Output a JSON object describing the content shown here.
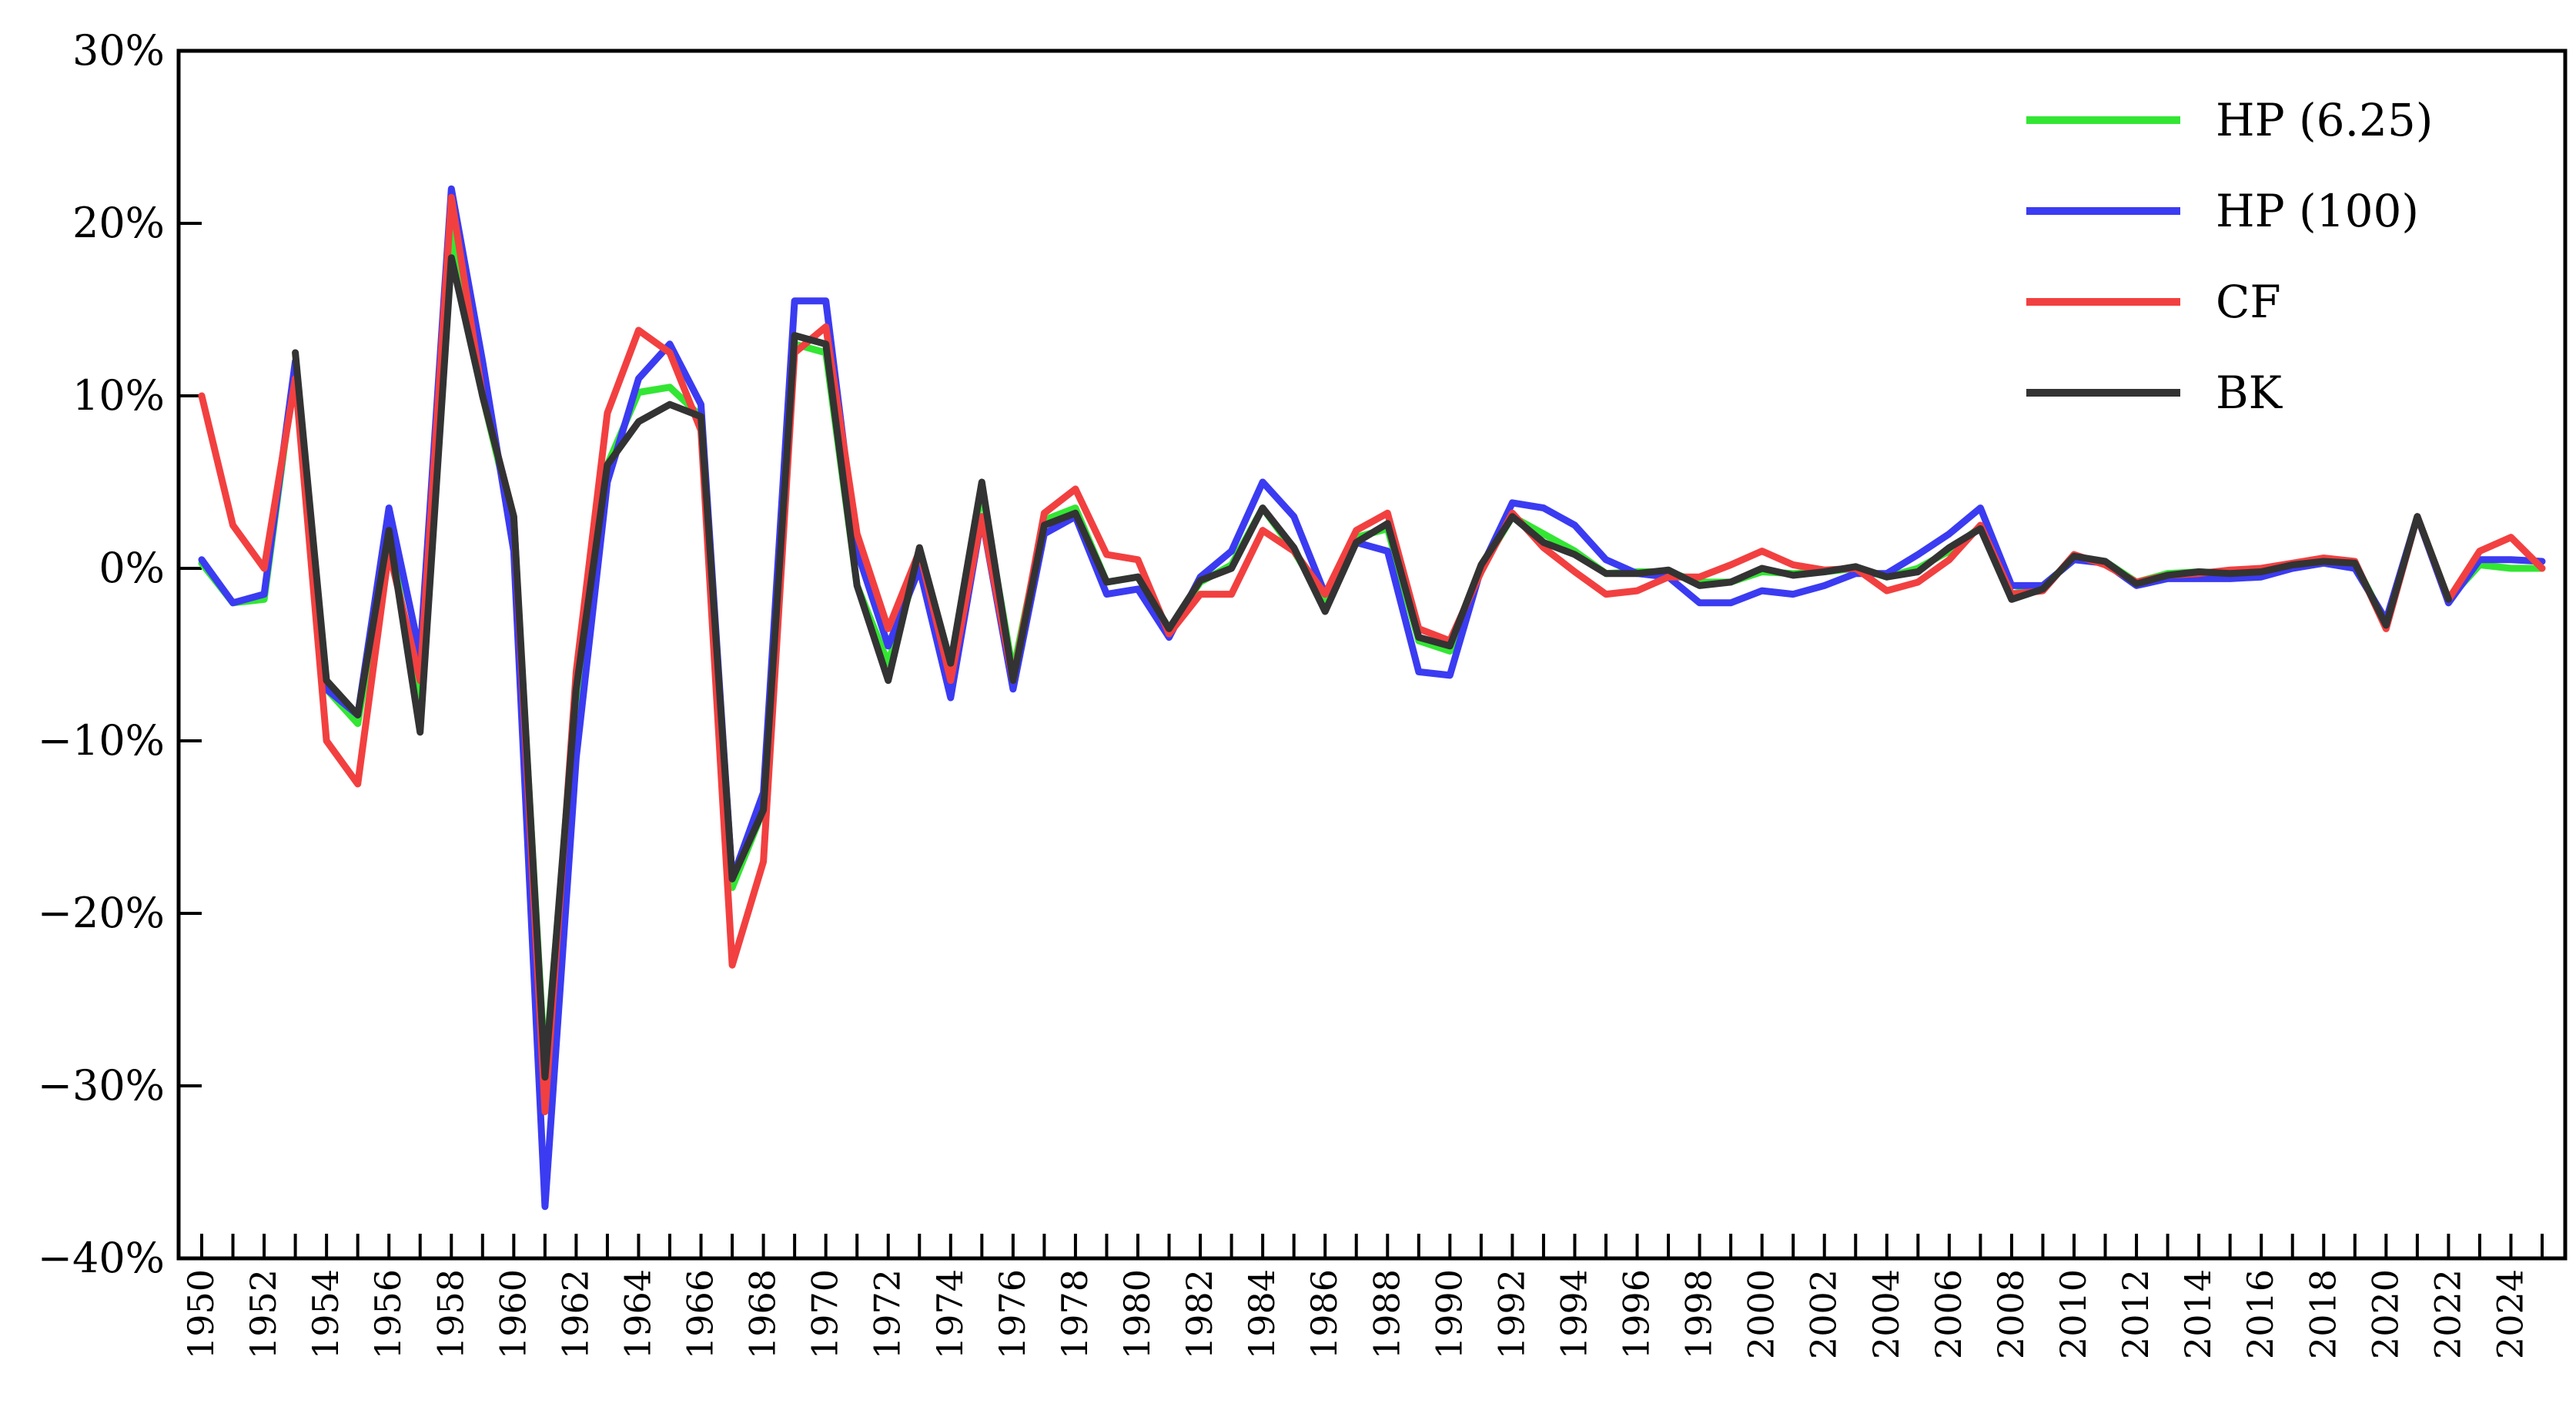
{
  "chart_data": {
    "type": "line",
    "title": "",
    "xlabel": "",
    "ylabel": "",
    "xlim": [
      1950,
      2025
    ],
    "ylim": [
      -40,
      30
    ],
    "y_ticks": [
      -40,
      -30,
      -20,
      -10,
      0,
      10,
      20,
      30
    ],
    "y_tick_labels": [
      "−40%",
      "−30%",
      "−20%",
      "−10%",
      "0%",
      "10%",
      "20%",
      "30%"
    ],
    "x_tick_labels": [
      "1950",
      "1952",
      "1954",
      "1956",
      "1958",
      "1960",
      "1962",
      "1964",
      "1966",
      "1968",
      "1970",
      "1972",
      "1974",
      "1976",
      "1978",
      "1980",
      "1982",
      "1984",
      "1986",
      "1988",
      "1990",
      "1992",
      "1994",
      "1996",
      "1998",
      "2000",
      "2002",
      "2004",
      "2006",
      "2008",
      "2010",
      "2012",
      "2014",
      "2016",
      "2018",
      "2020",
      "2022",
      "2024"
    ],
    "grid": false,
    "legend": "top-right",
    "x": [
      1950,
      1951,
      1952,
      1953,
      1954,
      1955,
      1956,
      1957,
      1958,
      1959,
      1960,
      1961,
      1962,
      1963,
      1964,
      1965,
      1966,
      1967,
      1968,
      1969,
      1970,
      1971,
      1972,
      1973,
      1974,
      1975,
      1976,
      1977,
      1978,
      1979,
      1980,
      1981,
      1982,
      1983,
      1984,
      1985,
      1986,
      1987,
      1988,
      1989,
      1990,
      1991,
      1992,
      1993,
      1994,
      1995,
      1996,
      1997,
      1998,
      1999,
      2000,
      2001,
      2002,
      2003,
      2004,
      2005,
      2006,
      2007,
      2008,
      2009,
      2010,
      2011,
      2012,
      2013,
      2014,
      2015,
      2016,
      2017,
      2018,
      2019,
      2020,
      2021,
      2022,
      2023,
      2024,
      2025
    ],
    "series": [
      {
        "name": "HP (6.25)",
        "color": "#33e633",
        "values": [
          0.3,
          -2.0,
          -1.8,
          11.8,
          -7.0,
          -9.0,
          1.8,
          -7.5,
          19.5,
          10.0,
          2.5,
          -29.0,
          -8.0,
          6.0,
          10.2,
          10.5,
          8.8,
          -18.5,
          -14.0,
          13.0,
          12.5,
          -1.0,
          -5.5,
          0.5,
          -5.5,
          4.5,
          -6.0,
          2.8,
          3.5,
          -0.8,
          -0.5,
          -3.5,
          -0.8,
          0.2,
          3.5,
          1.0,
          -2.0,
          1.8,
          2.3,
          -4.2,
          -4.8,
          0.0,
          3.0,
          2.0,
          1.0,
          -0.3,
          -0.2,
          -0.2,
          -0.8,
          -0.8,
          -0.2,
          -0.3,
          -0.2,
          0.0,
          -0.5,
          0.0,
          1.0,
          2.4,
          -1.5,
          -1.0,
          0.5,
          0.4,
          -0.8,
          -0.3,
          -0.2,
          -0.3,
          -0.2,
          0.2,
          0.4,
          0.3,
          -3.2,
          3.0,
          -1.8,
          0.2,
          0.0,
          0.0
        ]
      },
      {
        "name": "HP  (100)",
        "color": "#3b3bf2",
        "values": [
          0.5,
          -2.0,
          -1.5,
          12.0,
          -7.0,
          -8.5,
          3.5,
          -5.0,
          22.0,
          12.0,
          1.0,
          -37.0,
          -11.0,
          5.0,
          11.0,
          13.0,
          9.5,
          -18.0,
          -13.0,
          15.5,
          15.5,
          1.0,
          -4.5,
          0.0,
          -7.5,
          3.0,
          -7.0,
          2.0,
          3.0,
          -1.5,
          -1.2,
          -4.0,
          -0.5,
          1.0,
          5.0,
          3.0,
          -1.5,
          1.5,
          1.0,
          -6.0,
          -6.2,
          0.0,
          3.8,
          3.5,
          2.5,
          0.5,
          -0.3,
          -0.5,
          -2.0,
          -2.0,
          -1.3,
          -1.5,
          -1.0,
          -0.3,
          -0.3,
          0.8,
          2.0,
          3.5,
          -1.0,
          -1.0,
          0.5,
          0.3,
          -1.0,
          -0.6,
          -0.6,
          -0.6,
          -0.5,
          0.0,
          0.3,
          0.0,
          -3.0,
          3.0,
          -2.0,
          0.5,
          0.5,
          0.4
        ]
      },
      {
        "name": "CF",
        "color": "#f24040",
        "values": [
          10.0,
          2.5,
          0.0,
          11.0,
          -10.0,
          -12.5,
          1.0,
          -6.5,
          21.5,
          10.0,
          3.0,
          -31.5,
          -6.0,
          9.0,
          13.8,
          12.5,
          8.0,
          -23.0,
          -17.0,
          12.5,
          14.0,
          2.0,
          -3.5,
          1.0,
          -6.5,
          3.0,
          -6.5,
          3.2,
          4.6,
          0.8,
          0.5,
          -3.8,
          -1.5,
          -1.5,
          2.2,
          1.0,
          -1.5,
          2.2,
          3.2,
          -3.5,
          -4.2,
          -0.2,
          3.2,
          1.2,
          -0.2,
          -1.5,
          -1.3,
          -0.5,
          -0.5,
          0.2,
          1.0,
          0.2,
          -0.1,
          0.0,
          -1.3,
          -0.8,
          0.5,
          2.5,
          -1.5,
          -1.3,
          0.8,
          0.2,
          -0.8,
          -0.4,
          -0.3,
          -0.1,
          0.0,
          0.3,
          0.6,
          0.4,
          -3.5,
          3.0,
          -1.8,
          1.0,
          1.8,
          0.0
        ]
      },
      {
        "name": "BK",
        "color": "#333333",
        "values": [
          null,
          null,
          null,
          12.5,
          -6.5,
          -8.5,
          2.2,
          -9.5,
          18.0,
          10.0,
          3.0,
          -29.5,
          -7.0,
          6.0,
          8.5,
          9.5,
          8.8,
          -18.0,
          -14.0,
          13.5,
          13.0,
          -1.0,
          -6.5,
          1.2,
          -5.5,
          5.0,
          -6.5,
          2.5,
          3.2,
          -0.8,
          -0.5,
          -3.5,
          -0.7,
          0.0,
          3.5,
          1.2,
          -2.5,
          1.5,
          2.6,
          -4.0,
          -4.5,
          0.2,
          3.0,
          1.5,
          0.8,
          -0.3,
          -0.3,
          -0.1,
          -1.0,
          -0.8,
          0.0,
          -0.4,
          -0.2,
          0.1,
          -0.5,
          -0.2,
          1.2,
          2.3,
          -1.8,
          -1.2,
          0.7,
          0.4,
          -0.9,
          -0.4,
          -0.2,
          -0.3,
          -0.2,
          0.2,
          0.4,
          0.3,
          -3.3,
          3.0,
          -1.8,
          null,
          null,
          null
        ]
      }
    ]
  }
}
